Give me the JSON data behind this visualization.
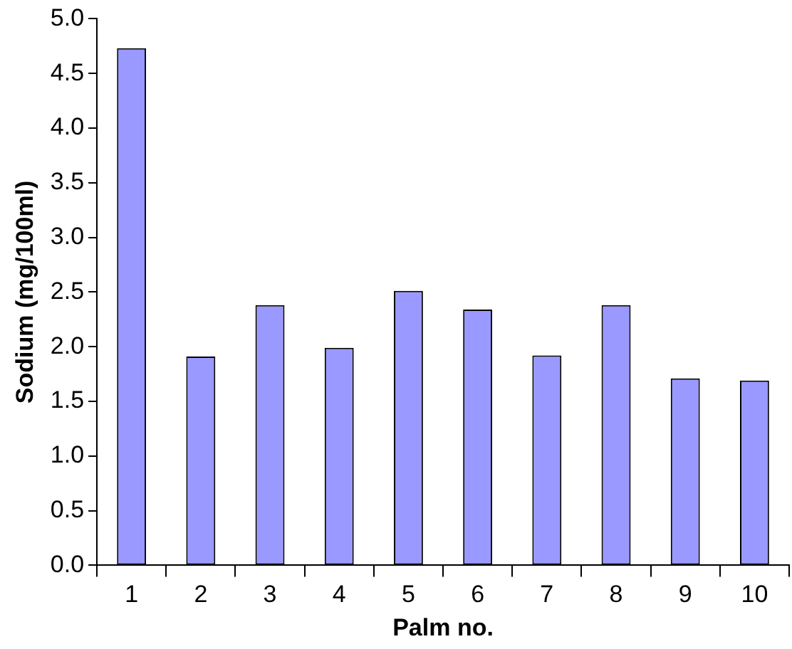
{
  "chart_data": {
    "type": "bar",
    "xlabel": "Palm no.",
    "ylabel": "Sodium (mg/100ml)",
    "categories": [
      "1",
      "2",
      "3",
      "4",
      "5",
      "6",
      "7",
      "8",
      "9",
      "10"
    ],
    "values": [
      4.73,
      1.91,
      2.38,
      1.99,
      2.51,
      2.34,
      1.92,
      2.38,
      1.71,
      1.69
    ],
    "color": "#9999ff",
    "ylim": [
      0,
      5
    ],
    "yticks": [
      {
        "value": 0,
        "label": "0.0"
      },
      0.5,
      {
        "value": 1,
        "label": "1.0"
      },
      1.5,
      {
        "value": 2,
        "label": "2.0"
      },
      2.5,
      {
        "value": 3,
        "label": "3.0"
      },
      3.5,
      {
        "value": 4,
        "label": "4.0"
      },
      4.5,
      {
        "value": 5,
        "label": "5.0"
      }
    ],
    "grid": false,
    "legend": false
  }
}
